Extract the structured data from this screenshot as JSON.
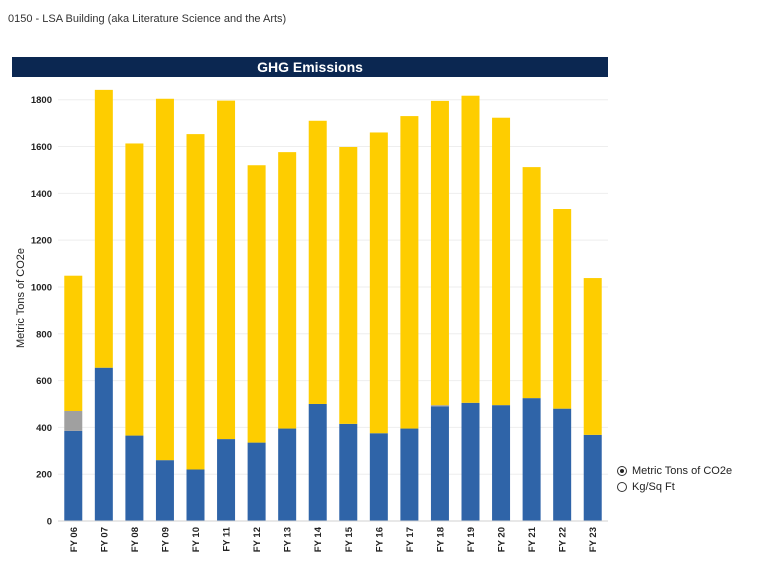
{
  "header": {
    "building": "0150 - LSA Building (aka Literature Science and the Arts)"
  },
  "legend": {
    "options": [
      {
        "label": "Metric Tons of CO2e",
        "selected": true
      },
      {
        "label": "Kg/Sq Ft",
        "selected": false
      }
    ]
  },
  "colors": {
    "title_bg": "#0b2751",
    "blue": "#2f64a8",
    "gray": "#a0a0a0",
    "yellow": "#fecd00"
  },
  "chart_data": {
    "type": "bar",
    "stacked": true,
    "title": "GHG Emissions",
    "ylabel": "Metric Tons of CO2e",
    "xlabel": "",
    "ylim": [
      0,
      1850
    ],
    "yticks": [
      0,
      200,
      400,
      600,
      800,
      1000,
      1200,
      1400,
      1600,
      1800
    ],
    "grid": true,
    "categories": [
      "FY 06",
      "FY 07",
      "FY 08",
      "FY 09",
      "FY 10",
      "FY 11",
      "FY 12",
      "FY 13",
      "FY 14",
      "FY 15",
      "FY 16",
      "FY 17",
      "FY 18",
      "FY 19",
      "FY 20",
      "FY 21",
      "FY 22",
      "FY 23"
    ],
    "series": [
      {
        "color": "#2f64a8",
        "values": [
          385,
          655,
          365,
          260,
          220,
          350,
          335,
          395,
          500,
          415,
          375,
          395,
          490,
          505,
          495,
          525,
          480,
          368
        ]
      },
      {
        "color": "#a0a0a0",
        "values": [
          85,
          0,
          0,
          0,
          0,
          0,
          0,
          0,
          0,
          0,
          0,
          0,
          5,
          0,
          0,
          0,
          0,
          0
        ]
      },
      {
        "color": "#fecd00",
        "values": [
          578,
          1187,
          1248,
          1544,
          1433,
          1446,
          1185,
          1181,
          1210,
          1183,
          1285,
          1335,
          1300,
          1312,
          1228,
          987,
          853,
          670
        ]
      }
    ]
  }
}
